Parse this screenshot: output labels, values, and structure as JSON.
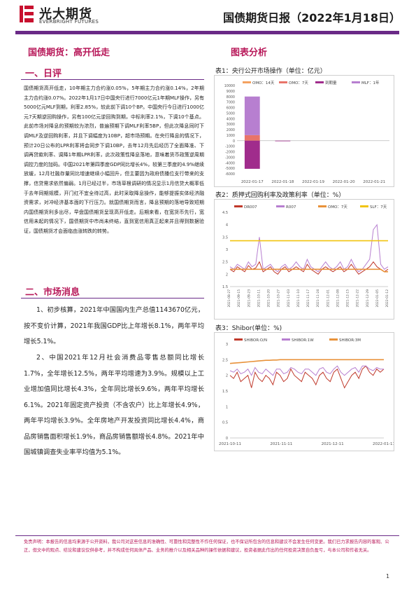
{
  "header": {
    "brand_cn": "光大期货",
    "brand_en": "EVERBRIGHT FUTURES",
    "report_title": "国债期货日报（2022年1月18日）"
  },
  "left": {
    "main_title": "国债期货：高开低走",
    "sec1_title": "一、日评",
    "commentary": "国债期货高开低走，10年期主力合约涨0.05%，5年期主力合约涨0.14%，2年期主力合约涨0.07%。2022年1月17日中国央行进行7000亿元1年期MLF操作，另有5000亿元MLF到期，利率2.85%，较此前下调10个BP。中国央行今日进行1000亿元7天期逆回购操作，另有100亿元逆回购到期，中标利率2.1%，下调10个基点。此前市场对降息的预期较为浓烈，普遍预期下调MLF利率5BP，但此次降息同时下调MLF及逆回购利率，并且下调幅度为10BP，超市场预期。在央行降息的情况下，预计20日公布的LPR利率将会同步下调10BP，去年12月先后经历了全面降准、下调再贷款利率、调降1年期LPR利率，此次政策性降息落地，意味着货币政策逆周期调控力度的加码。中国2021年第四季度GDP同比增长4%，较第三季度的4.9%继续放缓，12月社融存量同比增速继续小幅回升，但主要因为政府债播位支行带来的支撑，信贷需求依然偏弱。1月已经过半，市场草根调研的情况显示1月信贷大概率低于去年同期规模，开门红不宜全待过高，此时采取降息操作，能够提振实体经济融资需求，对冲经济基本面的下行压力。就国债期货而言，降息预期的落地导致短期内国债期货利多出尽，早盘国债期货呈现高开低走。后期来看，在宽货币先行，宽信用未起的情况下，国债期货中市尚未终结，直到宽信用真正起来并且得到数据验证，国债期货才会面临由涨转跌的转势。",
    "sec2_title": "二、市场消息",
    "news1": "1、初步核算，2021年中国国内生产总值1143670亿元，按不变价计算，2021年我国GDP比上年增长8.1%，两年平均增长5.1%。",
    "news2": "2、中国2021年12月社会消费品零售总额同比增长1.7%，全年增长12.5%，两年平均增速为3.9%。规模以上工业增加值同比增长4.3%，全年同比增长9.6%，两年平均增长6.1%。2021年固定资产投资（不含农户）比上年增长4.9%，两年平均增长3.9%。全年房地产开发投资同比增长4.4%，商品房销售面积增长1.9%，商品房销售额增长4.8%。2021年中国城镇调查失业率平均值为5.1%。"
  },
  "right": {
    "section_title": "图表分析",
    "table1_caption": "表1：央行公开市场操作（单位：亿元）",
    "table2_caption": "表2：质押式回购利率及政策利率（单位：%）",
    "table3_caption": "表3：Shibor(单位：%)"
  },
  "footer": {
    "disclaimer": "免责声明：本报告的信息均来源于公开资料，我公司对这些信息的准确性、可靠性和完整性不作任何保证，也不保证所包含的信息和建议不会发生任何变更。我们已力求报告内容的客观、公正，但文中的观点、结论和建议仅供参考，并不构成任何具体产品、业务的推介以及相关品种的操作依据和建议，投资者据此作出的任何投资决策自负盈亏，与本公司和作者无关。",
    "page": "1"
  },
  "colors": {
    "brand_purple": "#6a2a87",
    "title_red": "#b8195a",
    "series_purple": "#9b59b6",
    "series_salmon": "#e8746a",
    "series_orange": "#e8923a",
    "series_red": "#c0392b",
    "series_yellow": "#f1c40f",
    "series_magenta": "#a02c8c"
  },
  "chart_data": [
    {
      "type": "bar",
      "caption": "表1：央行公开市场操作（单位：亿元）",
      "categories": [
        "2022-01-17",
        "2022-01-18",
        "2022-01-19",
        "2022-01-20",
        "2022-01-21"
      ],
      "legend_placement": "top",
      "ylim": [
        -6000,
        10000
      ],
      "yticks": [
        -6000,
        -5000,
        -4000,
        -3000,
        -2000,
        -1000,
        0,
        1000,
        2000,
        3000,
        4000,
        5000,
        6000,
        7000,
        8000,
        9000,
        10000
      ],
      "series": [
        {
          "name": "OMO：14天",
          "color": "#f4a261",
          "values": [
            0,
            0,
            0,
            0,
            0
          ]
        },
        {
          "name": "OMO：7天",
          "color": "#e8746a",
          "values": [
            1000,
            0,
            0,
            0,
            0
          ]
        },
        {
          "name": "到期量",
          "color": "#a02c8c",
          "values": [
            -5100,
            -100,
            0,
            0,
            0
          ]
        },
        {
          "name": "MLF：1年",
          "color": "#b77fd0",
          "values": [
            7000,
            0,
            0,
            0,
            0
          ]
        }
      ]
    },
    {
      "type": "line",
      "caption": "表2：质押式回购利率及政策利率（单位：%）",
      "ylim": [
        1.5,
        4.5
      ],
      "yticks": [
        1.5,
        2,
        2.5,
        3,
        3.5,
        4,
        4.5
      ],
      "xticks": [
        "2021-08-27",
        "2021-09-15",
        "2021-09-23",
        "2021-10-11",
        "2021-10-20",
        "2021-10-27",
        "2021-11-03",
        "2021-11-10",
        "2021-11-17",
        "2021-11-24",
        "2021-12-01",
        "2021-12-08",
        "2021-12-15",
        "2021-12-22",
        "2021-12-29",
        "2022-01-05",
        "2022-01-12"
      ],
      "legend_placement": "top",
      "series": [
        {
          "name": "DR007",
          "color": "#c0392b",
          "values": [
            2.2,
            2.1,
            2.3,
            2.2,
            2.1,
            2.35,
            2.2,
            2.25,
            2.5,
            2.1,
            2.2,
            2.3,
            2.1,
            2.0,
            2.2,
            2.3,
            2.1,
            2.2,
            2.3,
            2.2,
            2.1,
            2.4,
            2.2,
            2.1,
            2.0,
            2.2,
            2.3,
            2.2,
            2.1,
            2.2,
            2.3,
            2.1,
            2.2,
            2.4,
            2.2,
            2.0,
            2.1,
            2.2,
            2.3,
            2.5,
            2.3,
            2.2,
            2.1,
            2.2
          ]
        },
        {
          "name": "R007",
          "color": "#b77fd0",
          "values": [
            2.3,
            2.2,
            2.4,
            2.3,
            2.2,
            2.5,
            2.3,
            2.4,
            3.5,
            2.2,
            2.3,
            2.4,
            2.2,
            2.1,
            2.3,
            2.4,
            2.2,
            2.3,
            2.5,
            2.3,
            2.2,
            2.6,
            2.3,
            2.2,
            2.1,
            2.3,
            2.5,
            2.3,
            2.2,
            2.3,
            2.5,
            2.2,
            2.3,
            2.6,
            2.3,
            2.1,
            2.2,
            2.4,
            2.6,
            3.8,
            4.0,
            2.4,
            2.2,
            2.3
          ]
        },
        {
          "name": "OMO：7天",
          "color": "#e8923a",
          "values": [
            2.2,
            2.2,
            2.2,
            2.2,
            2.2,
            2.2,
            2.2,
            2.2,
            2.2,
            2.2,
            2.2,
            2.2,
            2.2,
            2.2,
            2.2,
            2.2,
            2.2,
            2.2,
            2.2,
            2.2,
            2.2,
            2.2,
            2.2,
            2.2,
            2.2,
            2.2,
            2.2,
            2.2,
            2.2,
            2.2,
            2.2,
            2.2,
            2.2,
            2.2,
            2.2,
            2.2,
            2.2,
            2.2,
            2.2,
            2.2,
            2.2,
            2.2,
            2.1,
            2.1
          ]
        },
        {
          "name": "SLF：7天",
          "color": "#f1c40f",
          "values": [
            3.35,
            3.35,
            3.35,
            3.35,
            3.35,
            3.35,
            3.35,
            3.35,
            3.35,
            3.35,
            3.35,
            3.35,
            3.35,
            3.35,
            3.35,
            3.35,
            3.35,
            3.35,
            3.35,
            3.35,
            3.35,
            3.35,
            3.35,
            3.35,
            3.35,
            3.35,
            3.35,
            3.35,
            3.35,
            3.35,
            3.35,
            3.35,
            3.35,
            3.35,
            3.35,
            3.35,
            3.35,
            3.35,
            3.35,
            3.35,
            3.35,
            3.35,
            3.35,
            3.35
          ]
        }
      ]
    },
    {
      "type": "line",
      "caption": "表3：Shibor(单位：%)",
      "ylim": [
        0,
        3
      ],
      "yticks": [
        0,
        0.5,
        1,
        1.5,
        2,
        2.5,
        3
      ],
      "xticks": [
        "2021-10-11",
        "2021-11-11",
        "2021-12-11",
        "2022-01-11"
      ],
      "legend_placement": "top",
      "series": [
        {
          "name": "SHIBOR:O/N",
          "color": "#c0392b",
          "values": [
            2.0,
            1.9,
            2.1,
            1.8,
            1.9,
            2.0,
            1.6,
            2.1,
            1.9,
            1.8,
            2.0,
            1.9,
            1.7,
            2.1,
            2.0,
            1.8,
            1.9,
            2.2,
            2.0,
            1.9,
            1.8,
            2.1,
            2.0,
            1.9,
            1.7,
            2.0,
            2.1,
            1.9,
            1.8,
            2.1,
            2.2,
            1.9,
            1.6,
            1.8,
            2.0,
            2.1,
            1.9,
            2.2,
            2.3,
            2.1,
            2.0,
            2.2,
            2.1,
            2.2
          ]
        },
        {
          "name": "SHIBOR:1W",
          "color": "#b77fd0",
          "values": [
            2.15,
            2.1,
            2.2,
            2.05,
            2.1,
            2.2,
            2.0,
            2.25,
            2.1,
            2.05,
            2.2,
            2.1,
            2.0,
            2.2,
            2.2,
            2.05,
            2.1,
            2.25,
            2.2,
            2.1,
            2.05,
            2.2,
            2.2,
            2.1,
            2.0,
            2.2,
            2.25,
            2.1,
            2.05,
            2.2,
            2.3,
            2.1,
            2.0,
            2.1,
            2.2,
            2.25,
            2.1,
            2.3,
            2.3,
            2.2,
            2.15,
            2.25,
            2.2,
            2.2
          ]
        },
        {
          "name": "SHIBOR:3M",
          "color": "#e8923a",
          "values": [
            2.38,
            2.39,
            2.4,
            2.41,
            2.42,
            2.43,
            2.44,
            2.45,
            2.46,
            2.47,
            2.48,
            2.48,
            2.49,
            2.49,
            2.5,
            2.5,
            2.5,
            2.5,
            2.5,
            2.5,
            2.5,
            2.5,
            2.5,
            2.5,
            2.5,
            2.5,
            2.5,
            2.5,
            2.5,
            2.5,
            2.5,
            2.5,
            2.5,
            2.5,
            2.5,
            2.5,
            2.5,
            2.5,
            2.5,
            2.5,
            2.5,
            2.5,
            2.5,
            2.5
          ]
        }
      ]
    }
  ]
}
